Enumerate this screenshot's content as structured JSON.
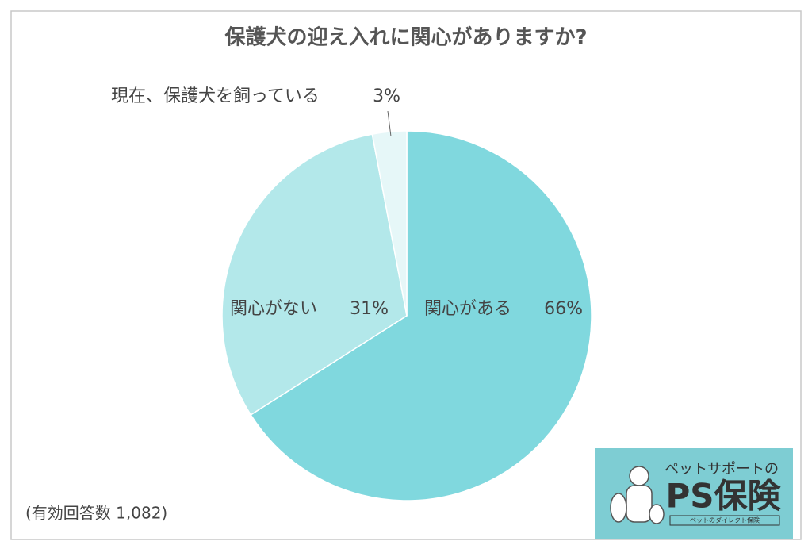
{
  "chart_data": {
    "type": "pie",
    "title": "保護犬の迎え入れに関心がありますか?",
    "categories": [
      "関心がある",
      "関心がない",
      "現在、保護犬を飼っている"
    ],
    "values": [
      66,
      31,
      3
    ],
    "value_labels": [
      "66%",
      "31%",
      "3%"
    ],
    "colors": [
      "#80d8de",
      "#b3e8ea",
      "#e6f7f8"
    ],
    "annotation": "(有効回答数 1,082)"
  },
  "logo": {
    "tagline": "ペットサポートの",
    "name": "PS保険",
    "subtitle": "ペットのダイレクト保険"
  }
}
